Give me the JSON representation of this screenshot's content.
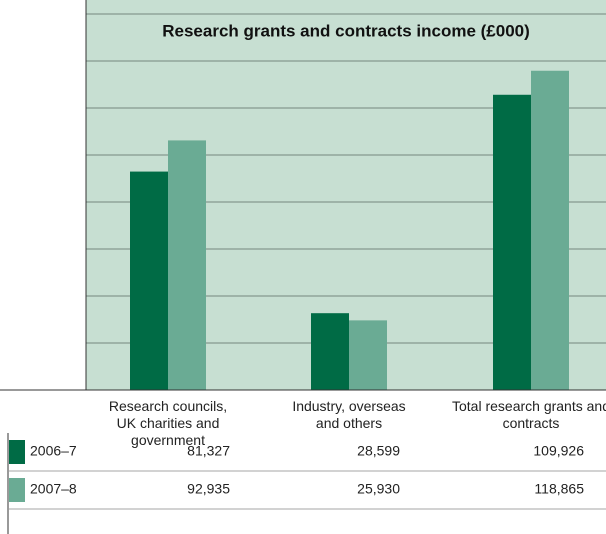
{
  "chart_data": {
    "type": "bar",
    "title": "Research grants and contracts income (£000)",
    "categories": [
      "Research councils, UK charities and government",
      "Industry, overseas and others",
      "Total research grants and contracts"
    ],
    "series": [
      {
        "name": "2006–7",
        "color": "#006b45",
        "values": [
          81327,
          28599,
          109926
        ],
        "value_labels": [
          "81,327",
          "28,599",
          "109,926"
        ]
      },
      {
        "name": "2007–8",
        "color": "#6aab94",
        "values": [
          92935,
          25930,
          118865
        ],
        "value_labels": [
          "92,935",
          "25,930",
          "118,865"
        ]
      }
    ],
    "ylim": [
      0,
      140000
    ],
    "yticks": [
      0,
      17500,
      35000,
      52500,
      70000,
      87500,
      105000,
      122500,
      140000
    ],
    "grid": true
  }
}
